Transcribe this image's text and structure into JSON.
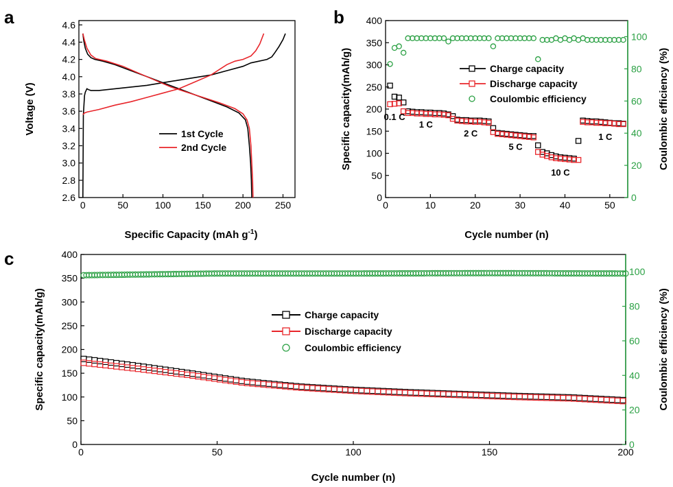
{
  "figure": {
    "labels": {
      "a": "a",
      "b": "b",
      "c": "c"
    }
  },
  "colors": {
    "charge": "#000000",
    "discharge": "#e8252a",
    "efficiency": "#2aa043",
    "right_axis": "#2aa043"
  },
  "chart_data": [
    {
      "id": "a",
      "type": "line",
      "xlabel": "Specific Capacity (mAh g",
      "xlabel_sup": "-1",
      "xlabel_tail": ")",
      "ylabel": "Voltage (V)",
      "xlim": [
        -5,
        265
      ],
      "ylim": [
        2.6,
        4.65
      ],
      "xticks": [
        0,
        50,
        100,
        150,
        200,
        250
      ],
      "yticks": [
        2.6,
        2.8,
        3.0,
        3.2,
        3.4,
        3.6,
        3.8,
        4.0,
        4.2,
        4.4,
        4.6
      ],
      "ytick_labels": [
        "2.6",
        "2.8",
        "3.0",
        "3.2",
        "3.4",
        "3.6",
        "3.8",
        "4.0",
        "4.2",
        "4.4",
        "4.6"
      ],
      "legend": {
        "position": "center",
        "entries": [
          "1st Cycle",
          "2nd Cycle"
        ]
      },
      "series": [
        {
          "name": "1st Cycle",
          "color": "#000000",
          "points": [
            [
              0,
              2.6
            ],
            [
              0.6,
              3.55
            ],
            [
              1.2,
              3.65
            ],
            [
              2,
              3.78
            ],
            [
              3,
              3.82
            ],
            [
              4,
              3.84
            ],
            [
              5,
              3.86
            ],
            [
              7,
              3.85
            ],
            [
              10,
              3.84
            ],
            [
              20,
              3.84
            ],
            [
              40,
              3.86
            ],
            [
              60,
              3.88
            ],
            [
              80,
              3.9
            ],
            [
              100,
              3.93
            ],
            [
              120,
              3.96
            ],
            [
              140,
              3.99
            ],
            [
              160,
              4.02
            ],
            [
              180,
              4.07
            ],
            [
              200,
              4.12
            ],
            [
              210,
              4.16
            ],
            [
              220,
              4.18
            ],
            [
              230,
              4.2
            ],
            [
              236,
              4.23
            ],
            [
              240,
              4.28
            ],
            [
              245,
              4.35
            ],
            [
              250,
              4.43
            ],
            [
              253,
              4.5
            ]
          ]
        },
        {
          "name": "1st Cycle",
          "color": "#000000",
          "points": [
            [
              0,
              4.5
            ],
            [
              1,
              4.42
            ],
            [
              3,
              4.33
            ],
            [
              6,
              4.26
            ],
            [
              10,
              4.22
            ],
            [
              15,
              4.2
            ],
            [
              25,
              4.18
            ],
            [
              40,
              4.14
            ],
            [
              60,
              4.07
            ],
            [
              80,
              4.0
            ],
            [
              100,
              3.93
            ],
            [
              120,
              3.86
            ],
            [
              140,
              3.79
            ],
            [
              160,
              3.72
            ],
            [
              180,
              3.65
            ],
            [
              195,
              3.58
            ],
            [
              203,
              3.5
            ],
            [
              206,
              3.4
            ],
            [
              208,
              3.2
            ],
            [
              209.5,
              3.0
            ],
            [
              210.5,
              2.8
            ],
            [
              211,
              2.6
            ]
          ]
        },
        {
          "name": "2nd Cycle",
          "color": "#e8252a",
          "points": [
            [
              0,
              3.56
            ],
            [
              2,
              3.58
            ],
            [
              5,
              3.59
            ],
            [
              10,
              3.6
            ],
            [
              20,
              3.62
            ],
            [
              40,
              3.67
            ],
            [
              60,
              3.71
            ],
            [
              80,
              3.76
            ],
            [
              100,
              3.81
            ],
            [
              120,
              3.86
            ],
            [
              140,
              3.94
            ],
            [
              160,
              4.02
            ],
            [
              170,
              4.08
            ],
            [
              180,
              4.14
            ],
            [
              190,
              4.18
            ],
            [
              200,
              4.2
            ],
            [
              210,
              4.24
            ],
            [
              216,
              4.3
            ],
            [
              221,
              4.38
            ],
            [
              226,
              4.5
            ]
          ]
        },
        {
          "name": "2nd Cycle",
          "color": "#e8252a",
          "points": [
            [
              0,
              4.5
            ],
            [
              2,
              4.42
            ],
            [
              5,
              4.33
            ],
            [
              10,
              4.25
            ],
            [
              16,
              4.21
            ],
            [
              30,
              4.18
            ],
            [
              50,
              4.12
            ],
            [
              70,
              4.04
            ],
            [
              90,
              3.96
            ],
            [
              110,
              3.88
            ],
            [
              130,
              3.82
            ],
            [
              150,
              3.76
            ],
            [
              170,
              3.7
            ],
            [
              190,
              3.63
            ],
            [
              200,
              3.57
            ],
            [
              205,
              3.5
            ],
            [
              208,
              3.4
            ],
            [
              210,
              3.2
            ],
            [
              211,
              3.0
            ],
            [
              212,
              2.8
            ],
            [
              212.5,
              2.6
            ]
          ]
        }
      ]
    },
    {
      "id": "b",
      "type": "scatter",
      "xlabel": "Cycle number (n)",
      "ylabel": "Specific capacity(mAh/g)",
      "y2label": "Coulombic efficiency (%)",
      "xlim": [
        0,
        54
      ],
      "ylim": [
        0,
        400
      ],
      "y2lim": [
        0,
        110
      ],
      "xticks": [
        0,
        10,
        20,
        30,
        40,
        50
      ],
      "yticks": [
        0,
        50,
        100,
        150,
        200,
        250,
        300,
        350,
        400
      ],
      "y2ticks": [
        0,
        20,
        40,
        60,
        80,
        100
      ],
      "legend": {
        "position": "top-right",
        "entries": [
          "Charge capacity",
          "Discharge capacity",
          "Coulombic efficiency"
        ]
      },
      "annotations": [
        {
          "text": "0.1 C",
          "x": 2,
          "y": 175
        },
        {
          "text": "1 C",
          "x": 9,
          "y": 158
        },
        {
          "text": "2 C",
          "x": 19,
          "y": 138
        },
        {
          "text": "5 C",
          "x": 29,
          "y": 108
        },
        {
          "text": "10 C",
          "x": 39,
          "y": 50
        },
        {
          "text": "1 C",
          "x": 49,
          "y": 130
        }
      ],
      "series": [
        {
          "name": "Charge capacity",
          "marker": "square",
          "color": "#000000",
          "x": [
            1,
            2,
            3,
            4,
            5,
            6,
            7,
            8,
            9,
            10,
            11,
            12,
            13,
            14,
            15,
            16,
            17,
            18,
            19,
            20,
            21,
            22,
            23,
            24,
            25,
            26,
            27,
            28,
            29,
            30,
            31,
            32,
            33,
            34,
            35,
            36,
            37,
            38,
            39,
            40,
            41,
            42,
            43,
            44,
            45,
            46,
            47,
            48,
            49,
            50,
            51,
            52,
            53
          ],
          "y": [
            253,
            228,
            226,
            215,
            195,
            194,
            193,
            193,
            192,
            192,
            191,
            191,
            190,
            188,
            184,
            176,
            175,
            175,
            174,
            174,
            174,
            173,
            172,
            157,
            146,
            145,
            144,
            143,
            142,
            141,
            140,
            139,
            139,
            118,
            103,
            100,
            96,
            93,
            91,
            90,
            89,
            88,
            128,
            174,
            173,
            172,
            172,
            171,
            170,
            169,
            168,
            168,
            167
          ]
        },
        {
          "name": "Discharge capacity",
          "marker": "square",
          "color": "#e8252a",
          "x": [
            1,
            2,
            3,
            4,
            5,
            6,
            7,
            8,
            9,
            10,
            11,
            12,
            13,
            14,
            15,
            16,
            17,
            18,
            19,
            20,
            21,
            22,
            23,
            24,
            25,
            26,
            27,
            28,
            29,
            30,
            31,
            32,
            33,
            34,
            35,
            36,
            37,
            38,
            39,
            40,
            41,
            42,
            43,
            44,
            45,
            46,
            47,
            48,
            49,
            50,
            51,
            52,
            53
          ],
          "y": [
            211,
            212,
            213,
            195,
            191,
            191,
            190,
            190,
            189,
            189,
            188,
            188,
            187,
            186,
            178,
            174,
            173,
            172,
            172,
            171,
            171,
            170,
            169,
            148,
            144,
            143,
            142,
            141,
            140,
            139,
            138,
            137,
            136,
            103,
            97,
            94,
            91,
            89,
            88,
            87,
            86,
            85,
            85,
            171,
            170,
            170,
            169,
            169,
            168,
            168,
            167,
            166,
            166
          ]
        },
        {
          "name": "Coulombic efficiency",
          "marker": "circle",
          "color": "#2aa043",
          "axis": "right",
          "x": [
            1,
            2,
            3,
            4,
            5,
            6,
            7,
            8,
            9,
            10,
            11,
            12,
            13,
            14,
            15,
            16,
            17,
            18,
            19,
            20,
            21,
            22,
            23,
            24,
            25,
            26,
            27,
            28,
            29,
            30,
            31,
            32,
            33,
            34,
            35,
            36,
            37,
            38,
            39,
            40,
            41,
            42,
            43,
            44,
            45,
            46,
            47,
            48,
            49,
            50,
            51,
            52,
            53
          ],
          "y": [
            83,
            93,
            94,
            90,
            99,
            99,
            99,
            99,
            99,
            99,
            99,
            99,
            99,
            97,
            99,
            99,
            99,
            99,
            99,
            99,
            99,
            99,
            99,
            94,
            99,
            99,
            99,
            99,
            99,
            99,
            99,
            99,
            99,
            86,
            98,
            98,
            98,
            99,
            98,
            99,
            98,
            99,
            98,
            99,
            98,
            98,
            98,
            98,
            98,
            98,
            98,
            98,
            98
          ]
        }
      ]
    },
    {
      "id": "c",
      "type": "scatter",
      "xlabel": "Cycle number (n)",
      "ylabel": "Specific capacity(mAh/g)",
      "y2label": "Coulombic efficiency (%)",
      "xlim": [
        0,
        200
      ],
      "ylim": [
        0,
        400
      ],
      "y2lim": [
        0,
        110
      ],
      "xticks": [
        0,
        50,
        100,
        150,
        200
      ],
      "yticks": [
        0,
        50,
        100,
        150,
        200,
        250,
        300,
        350,
        400
      ],
      "y2ticks": [
        0,
        20,
        40,
        60,
        80,
        100
      ],
      "legend": {
        "position": "center",
        "entries": [
          "Charge capacity",
          "Discharge capacity",
          "Coulombic efficiency"
        ]
      },
      "series": [
        {
          "name": "Charge capacity",
          "marker": "square",
          "color": "#000000",
          "curve": [
            [
              1,
              180
            ],
            [
              20,
              166
            ],
            [
              40,
              150
            ],
            [
              60,
              133
            ],
            [
              80,
              122
            ],
            [
              100,
              115
            ],
            [
              120,
              110
            ],
            [
              140,
              106
            ],
            [
              160,
              102
            ],
            [
              180,
              99
            ],
            [
              200,
              93
            ]
          ],
          "x_step": 2
        },
        {
          "name": "Discharge capacity",
          "marker": "square",
          "color": "#e8252a",
          "curve": [
            [
              1,
              172
            ],
            [
              20,
              160
            ],
            [
              40,
              146
            ],
            [
              60,
              130
            ],
            [
              80,
              120
            ],
            [
              100,
              113
            ],
            [
              120,
              108
            ],
            [
              140,
              104
            ],
            [
              160,
              100
            ],
            [
              180,
              97
            ],
            [
              200,
              91
            ]
          ],
          "x_step": 2
        },
        {
          "name": "Coulombic efficiency",
          "marker": "circle",
          "color": "#2aa043",
          "axis": "right",
          "curve": [
            [
              1,
              98
            ],
            [
              50,
              99
            ],
            [
              100,
              99
            ],
            [
              150,
              99.2
            ],
            [
              200,
              99
            ]
          ],
          "x_step": 1
        }
      ]
    }
  ]
}
